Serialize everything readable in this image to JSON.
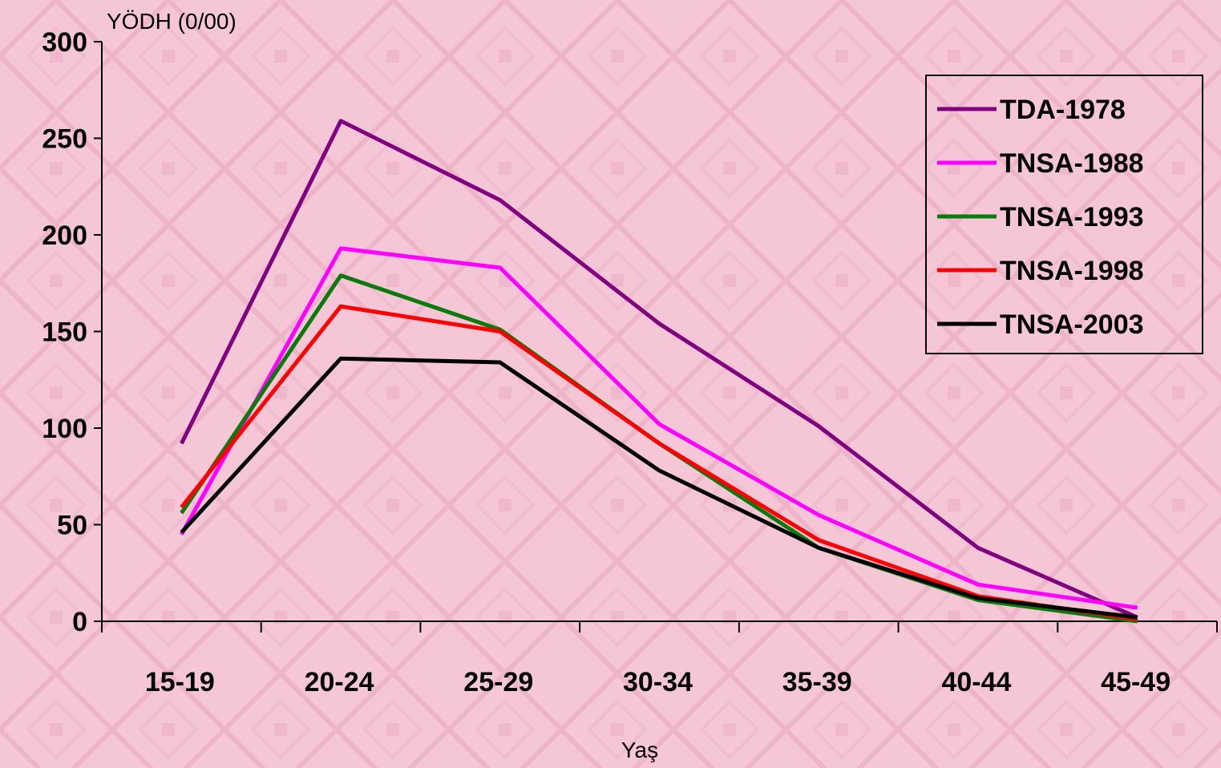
{
  "chart_data": {
    "type": "line",
    "title": "",
    "ylabel": "YÖDH (0/00)",
    "xlabel": "Yaş",
    "categories": [
      "15-19",
      "20-24",
      "25-29",
      "30-34",
      "35-39",
      "40-44",
      "45-49"
    ],
    "ylim": [
      0,
      300
    ],
    "yticks": [
      0,
      50,
      100,
      150,
      200,
      250,
      300
    ],
    "grid": false,
    "legend_position": "top-right",
    "series": [
      {
        "name": "TDA-1978",
        "color": "#800080",
        "values": [
          92,
          259,
          218,
          154,
          101,
          38,
          2
        ]
      },
      {
        "name": "TNSA-1988",
        "color": "#ff00ff",
        "values": [
          45,
          193,
          183,
          102,
          55,
          19,
          7
        ]
      },
      {
        "name": "TNSA-1993",
        "color": "#0a7a0a",
        "values": [
          56,
          179,
          151,
          92,
          38,
          11,
          0
        ]
      },
      {
        "name": "TNSA-1998",
        "color": "#ff0000",
        "values": [
          59,
          163,
          150,
          92,
          42,
          13,
          1
        ]
      },
      {
        "name": "TNSA-2003",
        "color": "#000000",
        "values": [
          46,
          136,
          134,
          78,
          38,
          12,
          2
        ]
      }
    ]
  }
}
